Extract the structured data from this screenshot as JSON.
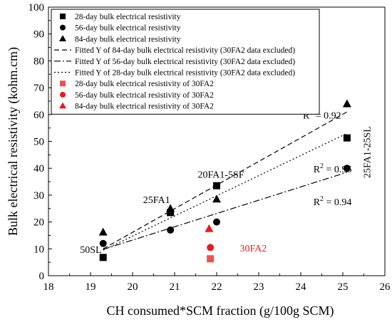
{
  "chart_data": {
    "type": "scatter",
    "xlabel": "CH consumed*SCM fraction (g/100g SCM)",
    "ylabel": "Bulk electrical resistivity (kohm.cm)",
    "xlim": [
      18,
      26
    ],
    "ylim": [
      0,
      100
    ],
    "x_ticks": [
      "18",
      "19",
      "20",
      "21",
      "22",
      "23",
      "24",
      "25",
      "26"
    ],
    "y_ticks": [
      "0",
      "10",
      "20",
      "30",
      "40",
      "50",
      "60",
      "70",
      "80",
      "90",
      "100"
    ],
    "grid": false,
    "legend_position": "top-left",
    "series": [
      {
        "name": "28-day bulk electrical resistivity",
        "marker": "square",
        "color": "#000000",
        "points": [
          [
            19.3,
            6.8
          ],
          [
            20.9,
            23.5
          ],
          [
            22.0,
            33.5
          ],
          [
            25.1,
            51.3
          ]
        ]
      },
      {
        "name": "56-day bulk electrical resistivity",
        "marker": "circle",
        "color": "#000000",
        "points": [
          [
            19.3,
            12.0
          ],
          [
            20.9,
            17.0
          ],
          [
            22.0,
            20.0
          ],
          [
            25.1,
            40.0
          ]
        ]
      },
      {
        "name": "84-day bulk electrical resistivity",
        "marker": "triangle",
        "color": "#000000",
        "points": [
          [
            19.3,
            16.2
          ],
          [
            20.9,
            25.0
          ],
          [
            22.0,
            28.5
          ],
          [
            25.1,
            64.0
          ]
        ]
      },
      {
        "name": "Fitted Y of 84-day bulk electrical resistivity (30FA2 data excluded)",
        "marker": "line",
        "dash": "dash",
        "color": "#000000",
        "points": [
          [
            19.3,
            10.0
          ],
          [
            25.1,
            61.0
          ]
        ]
      },
      {
        "name": "Fitted Y of 56-day bulk electrical resistivity (30FA2 data excluded)",
        "marker": "line",
        "dash": "dashdot",
        "color": "#000000",
        "points": [
          [
            19.3,
            9.8
          ],
          [
            25.1,
            38.5
          ]
        ]
      },
      {
        "name": "Fitted Y of 28-day bulk electrical resistivity (30FA2 data excluded)",
        "marker": "line",
        "dash": "dot",
        "color": "#000000",
        "points": [
          [
            19.3,
            9.5
          ],
          [
            25.1,
            53.0
          ]
        ]
      },
      {
        "name": "28-day bulk electrical resistivity of 30FA2",
        "marker": "square",
        "color": "#f05050",
        "points": [
          [
            21.85,
            6.3
          ]
        ]
      },
      {
        "name": "56-day bulk electrical resistivity of 30FA2",
        "marker": "circle",
        "color": "#e81c1c",
        "points": [
          [
            21.85,
            10.5
          ]
        ]
      },
      {
        "name": "84-day bulk electrical resistivity of 30FA2",
        "marker": "triangle",
        "color": "#e81c1c",
        "points": [
          [
            21.82,
            17.5
          ]
        ]
      }
    ],
    "annotations": [
      {
        "text": "50SL",
        "x": 18.75,
        "y": 8.5,
        "color": "#000000",
        "rotate": 0
      },
      {
        "text": "25FA1",
        "x": 20.25,
        "y": 27.0,
        "color": "#000000",
        "rotate": 0
      },
      {
        "text": "20FA1-5SF",
        "x": 21.55,
        "y": 36.5,
        "color": "#000000",
        "rotate": 0
      },
      {
        "text": "25FA1-25SL",
        "x": 25.65,
        "y": 46.0,
        "color": "#000000",
        "rotate": -90
      },
      {
        "text": "30FA2",
        "x": 22.55,
        "y": 9.0,
        "color": "#e81c1c",
        "rotate": 0
      },
      {
        "text": "R",
        "sup": "2",
        "rest": " = 0.92",
        "x": 24.05,
        "y": 58.5,
        "color": "#000000",
        "rotate": 0
      },
      {
        "text": "R",
        "sup": "2",
        "rest": " = 0.96",
        "x": 24.3,
        "y": 38.5,
        "color": "#000000",
        "rotate": 0
      },
      {
        "text": "R",
        "sup": "2",
        "rest": " = 0.94",
        "x": 24.3,
        "y": 26.3,
        "color": "#000000",
        "rotate": 0
      }
    ]
  }
}
